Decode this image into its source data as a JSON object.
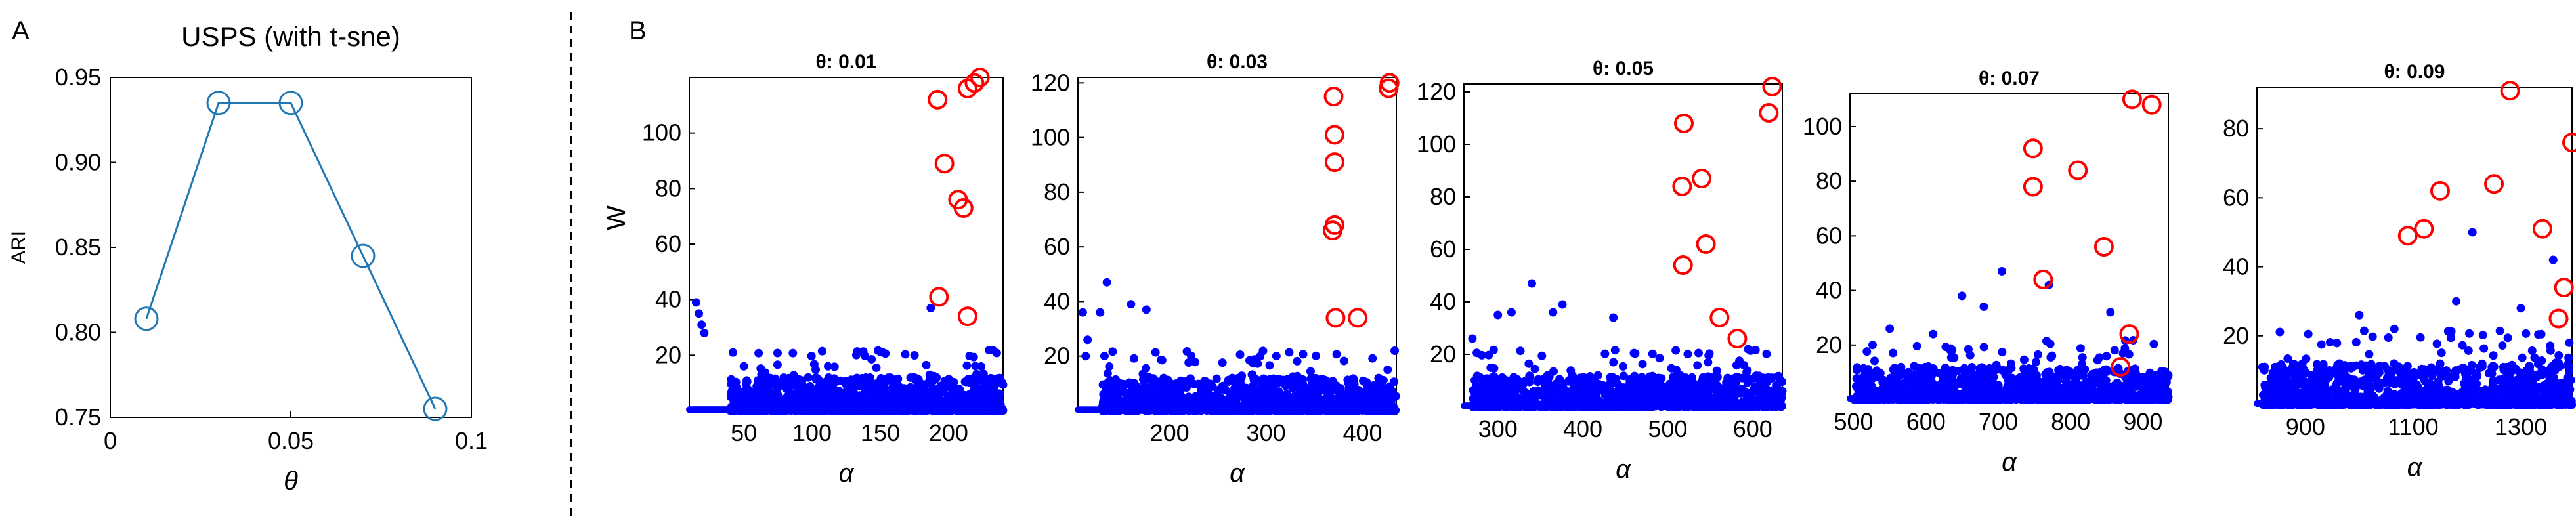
{
  "panels": {
    "a_label": "A",
    "b_label": "B"
  },
  "chart_data": [
    {
      "type": "line",
      "title": "USPS (with t-sne)",
      "xlabel": "θ",
      "ylabel": "ARI",
      "x": [
        0.01,
        0.03,
        0.05,
        0.07,
        0.09
      ],
      "y": [
        0.808,
        0.935,
        0.935,
        0.845,
        0.755
      ],
      "xlim": [
        0,
        0.1
      ],
      "ylim": [
        0.75,
        0.95
      ],
      "xticks": [
        0,
        0.05,
        0.1
      ],
      "xtick_labels": [
        "0",
        "0.05",
        "0.1"
      ],
      "yticks": [
        0.75,
        0.8,
        0.85,
        0.9,
        0.95
      ],
      "ytick_labels": [
        "0.75",
        "0.80",
        "0.85",
        "0.90",
        "0.95"
      ],
      "color": "#1f77b4",
      "marker": "open-circle",
      "grid": false
    },
    {
      "type": "scatter",
      "title": "θ: 0.01",
      "xlabel": "α",
      "ylabel": "W",
      "xlim": [
        10,
        240
      ],
      "ylim": [
        0,
        120
      ],
      "xticks": [
        50,
        100,
        150,
        200
      ],
      "yticks": [
        20,
        40,
        60,
        80,
        100
      ],
      "highlighted_points": [
        [
          192,
          112
        ],
        [
          197,
          89
        ],
        [
          207,
          76
        ],
        [
          211,
          73
        ],
        [
          214,
          116
        ],
        [
          219,
          118
        ],
        [
          223,
          120
        ],
        [
          214,
          34
        ],
        [
          193,
          41
        ]
      ],
      "notable_points": [
        [
          15,
          39
        ],
        [
          17,
          35
        ],
        [
          19,
          31
        ],
        [
          21,
          28
        ],
        [
          187,
          37
        ],
        [
          42,
          21
        ],
        [
          50,
          16
        ]
      ],
      "bulk": {
        "x_start": 40,
        "x_end": 240,
        "typical_w_max": 12
      },
      "colors": {
        "highlighted": "#ff0000",
        "points": "#0000ff"
      }
    },
    {
      "type": "scatter",
      "title": "θ: 0.03",
      "xlabel": "α",
      "xlim": [
        105,
        435
      ],
      "ylim": [
        0,
        122
      ],
      "xticks": [
        200,
        300,
        400
      ],
      "yticks": [
        20,
        40,
        60,
        80,
        100,
        120
      ],
      "highlighted_points": [
        [
          370,
          115
        ],
        [
          371,
          101
        ],
        [
          371,
          91
        ],
        [
          371,
          68
        ],
        [
          369,
          66
        ],
        [
          372,
          34
        ],
        [
          395,
          34
        ],
        [
          428,
          120
        ],
        [
          427,
          118
        ]
      ],
      "notable_points": [
        [
          110,
          36
        ],
        [
          115,
          26
        ],
        [
          128,
          36
        ],
        [
          135,
          47
        ],
        [
          160,
          39
        ],
        [
          176,
          37
        ],
        [
          113,
          20
        ]
      ],
      "bulk": {
        "x_start": 130,
        "x_end": 435,
        "typical_w_max": 12
      },
      "colors": {
        "highlighted": "#ff0000",
        "points": "#0000ff"
      }
    },
    {
      "type": "scatter",
      "title": "θ: 0.05",
      "xlabel": "α",
      "xlim": [
        260,
        635
      ],
      "ylim": [
        0,
        123
      ],
      "xticks": [
        300,
        400,
        500,
        600
      ],
      "yticks": [
        20,
        40,
        60,
        80,
        100,
        120
      ],
      "highlighted_points": [
        [
          519,
          108
        ],
        [
          517,
          84
        ],
        [
          540,
          87
        ],
        [
          545,
          62
        ],
        [
          518,
          54
        ],
        [
          561,
          34
        ],
        [
          582,
          26
        ],
        [
          619,
          112
        ],
        [
          623,
          122
        ]
      ],
      "notable_points": [
        [
          270,
          26
        ],
        [
          340,
          47
        ],
        [
          300,
          35
        ],
        [
          316,
          36
        ],
        [
          365,
          36
        ],
        [
          376,
          39
        ],
        [
          436,
          34
        ]
      ],
      "bulk": {
        "x_start": 270,
        "x_end": 635,
        "typical_w_max": 12
      },
      "colors": {
        "highlighted": "#ff0000",
        "points": "#0000ff"
      }
    },
    {
      "type": "scatter",
      "title": "θ: 0.07",
      "xlabel": "α",
      "xlim": [
        495,
        935
      ],
      "ylim": [
        0,
        112
      ],
      "xticks": [
        500,
        600,
        700,
        800,
        900
      ],
      "yticks": [
        20,
        40,
        60,
        80,
        100
      ],
      "highlighted_points": [
        [
          748,
          92
        ],
        [
          748,
          78
        ],
        [
          810,
          84
        ],
        [
          762,
          44
        ],
        [
          846,
          56
        ],
        [
          881,
          24
        ],
        [
          869,
          12
        ],
        [
          885,
          110
        ],
        [
          912,
          108
        ]
      ],
      "notable_points": [
        [
          705,
          47
        ],
        [
          650,
          38
        ],
        [
          680,
          34
        ],
        [
          610,
          24
        ],
        [
          550,
          26
        ],
        [
          770,
          42
        ],
        [
          855,
          32
        ]
      ],
      "bulk": {
        "x_start": 500,
        "x_end": 935,
        "typical_w_max": 12
      },
      "colors": {
        "highlighted": "#ff0000",
        "points": "#0000ff"
      }
    },
    {
      "type": "scatter",
      "title": "θ: 0.09",
      "xlabel": "α",
      "xlim": [
        810,
        1395
      ],
      "ylim": [
        0,
        92
      ],
      "xticks": [
        900,
        1100,
        1300
      ],
      "yticks": [
        20,
        40,
        60,
        80
      ],
      "highlighted_points": [
        [
          1280,
          91
        ],
        [
          1395,
          76
        ],
        [
          1250,
          64
        ],
        [
          1150,
          62
        ],
        [
          1120,
          51
        ],
        [
          1090,
          49
        ],
        [
          1340,
          51
        ],
        [
          1380,
          34
        ],
        [
          1370,
          25
        ]
      ],
      "notable_points": [
        [
          1210,
          50
        ],
        [
          1360,
          42
        ],
        [
          1000,
          26
        ],
        [
          1065,
          22
        ],
        [
          1180,
          30
        ],
        [
          1300,
          28
        ],
        [
          1390,
          18
        ]
      ],
      "bulk": {
        "x_start": 820,
        "x_end": 1395,
        "typical_w_max": 12
      },
      "colors": {
        "highlighted": "#ff0000",
        "points": "#0000ff"
      }
    }
  ]
}
